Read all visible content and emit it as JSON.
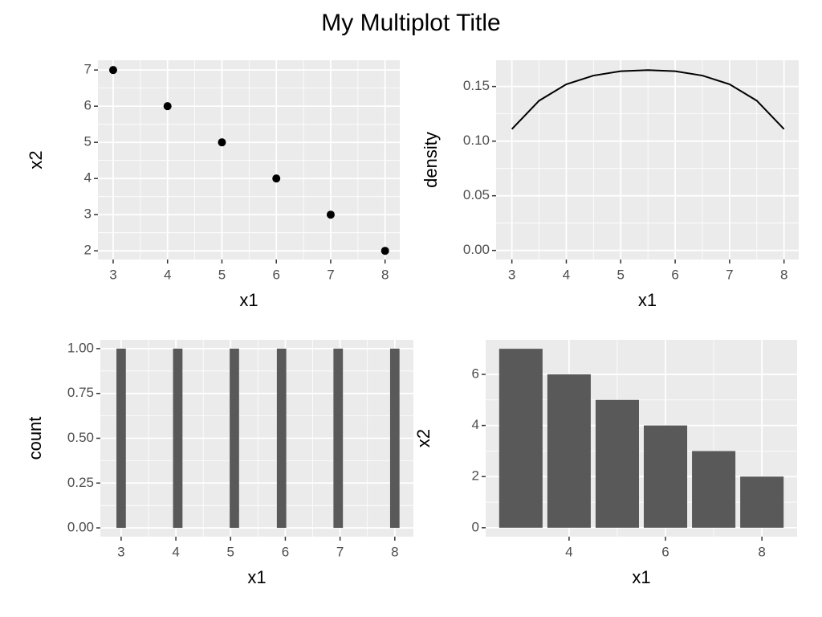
{
  "title": "My Multiplot Title",
  "chart_data": [
    {
      "type": "scatter",
      "x_label": "x1",
      "y_label": "x2",
      "x": [
        3,
        4,
        5,
        6,
        7,
        8
      ],
      "values": [
        7,
        6,
        5,
        4,
        3,
        2
      ],
      "color": "#000000",
      "xlim": [
        2.72,
        8.27
      ],
      "ylim": [
        1.76,
        7.27
      ],
      "xticks": [
        3,
        4,
        5,
        6,
        7,
        8
      ],
      "yticks": [
        2,
        3,
        4,
        5,
        6,
        7
      ],
      "grid": true
    },
    {
      "type": "line",
      "x_label": "x1",
      "y_label": "density",
      "x": [
        3,
        3.5,
        4,
        4.5,
        5,
        5.5,
        6,
        6.5,
        7,
        7.5,
        8
      ],
      "values": [
        0.111,
        0.137,
        0.152,
        0.16,
        0.164,
        0.165,
        0.164,
        0.16,
        0.152,
        0.137,
        0.111
      ],
      "color": "#000000",
      "xlim": [
        2.71,
        8.27
      ],
      "ylim": [
        -0.0083,
        0.174
      ],
      "xticks": [
        3,
        4,
        5,
        6,
        7,
        8
      ],
      "yticks": [
        {
          "value": 0,
          "label": "0.00"
        },
        {
          "value": 0.05,
          "label": "0.05"
        },
        {
          "value": 0.1,
          "label": "0.10"
        },
        {
          "value": 0.15,
          "label": "0.15"
        }
      ],
      "grid": true
    },
    {
      "type": "histogram",
      "x_label": "x1",
      "y_label": "count",
      "bins": [
        2.914,
        3.086,
        3.259,
        3.431,
        3.603,
        3.776,
        3.948,
        4.121,
        4.293,
        4.466,
        4.638,
        4.81,
        4.983,
        5.155,
        5.328,
        5.5,
        5.672,
        5.845,
        6.017,
        6.19,
        6.362,
        6.534,
        6.707,
        6.879,
        7.052,
        7.224,
        7.397,
        7.569,
        7.741,
        7.914,
        8.086
      ],
      "values": [
        1,
        0,
        0,
        0,
        0,
        0,
        1,
        0,
        0,
        0,
        0,
        0,
        1,
        0,
        0,
        0,
        0,
        1,
        0,
        0,
        0,
        0,
        0,
        1,
        0,
        0,
        0,
        0,
        0,
        1
      ],
      "color": "#595959",
      "xlim": [
        2.62,
        8.34
      ],
      "ylim": [
        -0.049,
        1.049
      ],
      "xticks": [
        3,
        4,
        5,
        6,
        7,
        8
      ],
      "yticks": [
        {
          "value": 0,
          "label": "0.00"
        },
        {
          "value": 0.25,
          "label": "0.25"
        },
        {
          "value": 0.5,
          "label": "0.50"
        },
        {
          "value": 0.75,
          "label": "0.75"
        },
        {
          "value": 1,
          "label": "1.00"
        }
      ],
      "grid": true
    },
    {
      "type": "bar",
      "x_label": "x1",
      "y_label": "x2",
      "x": [
        3,
        4,
        5,
        6,
        7,
        8
      ],
      "values": [
        7,
        6,
        5,
        4,
        3,
        2
      ],
      "color": "#595959",
      "xlim": [
        2.27,
        8.73
      ],
      "ylim": [
        -0.35,
        7.35
      ],
      "xticks": [
        4,
        6,
        8
      ],
      "yticks": [
        0,
        2,
        4,
        6
      ],
      "grid": true
    }
  ]
}
